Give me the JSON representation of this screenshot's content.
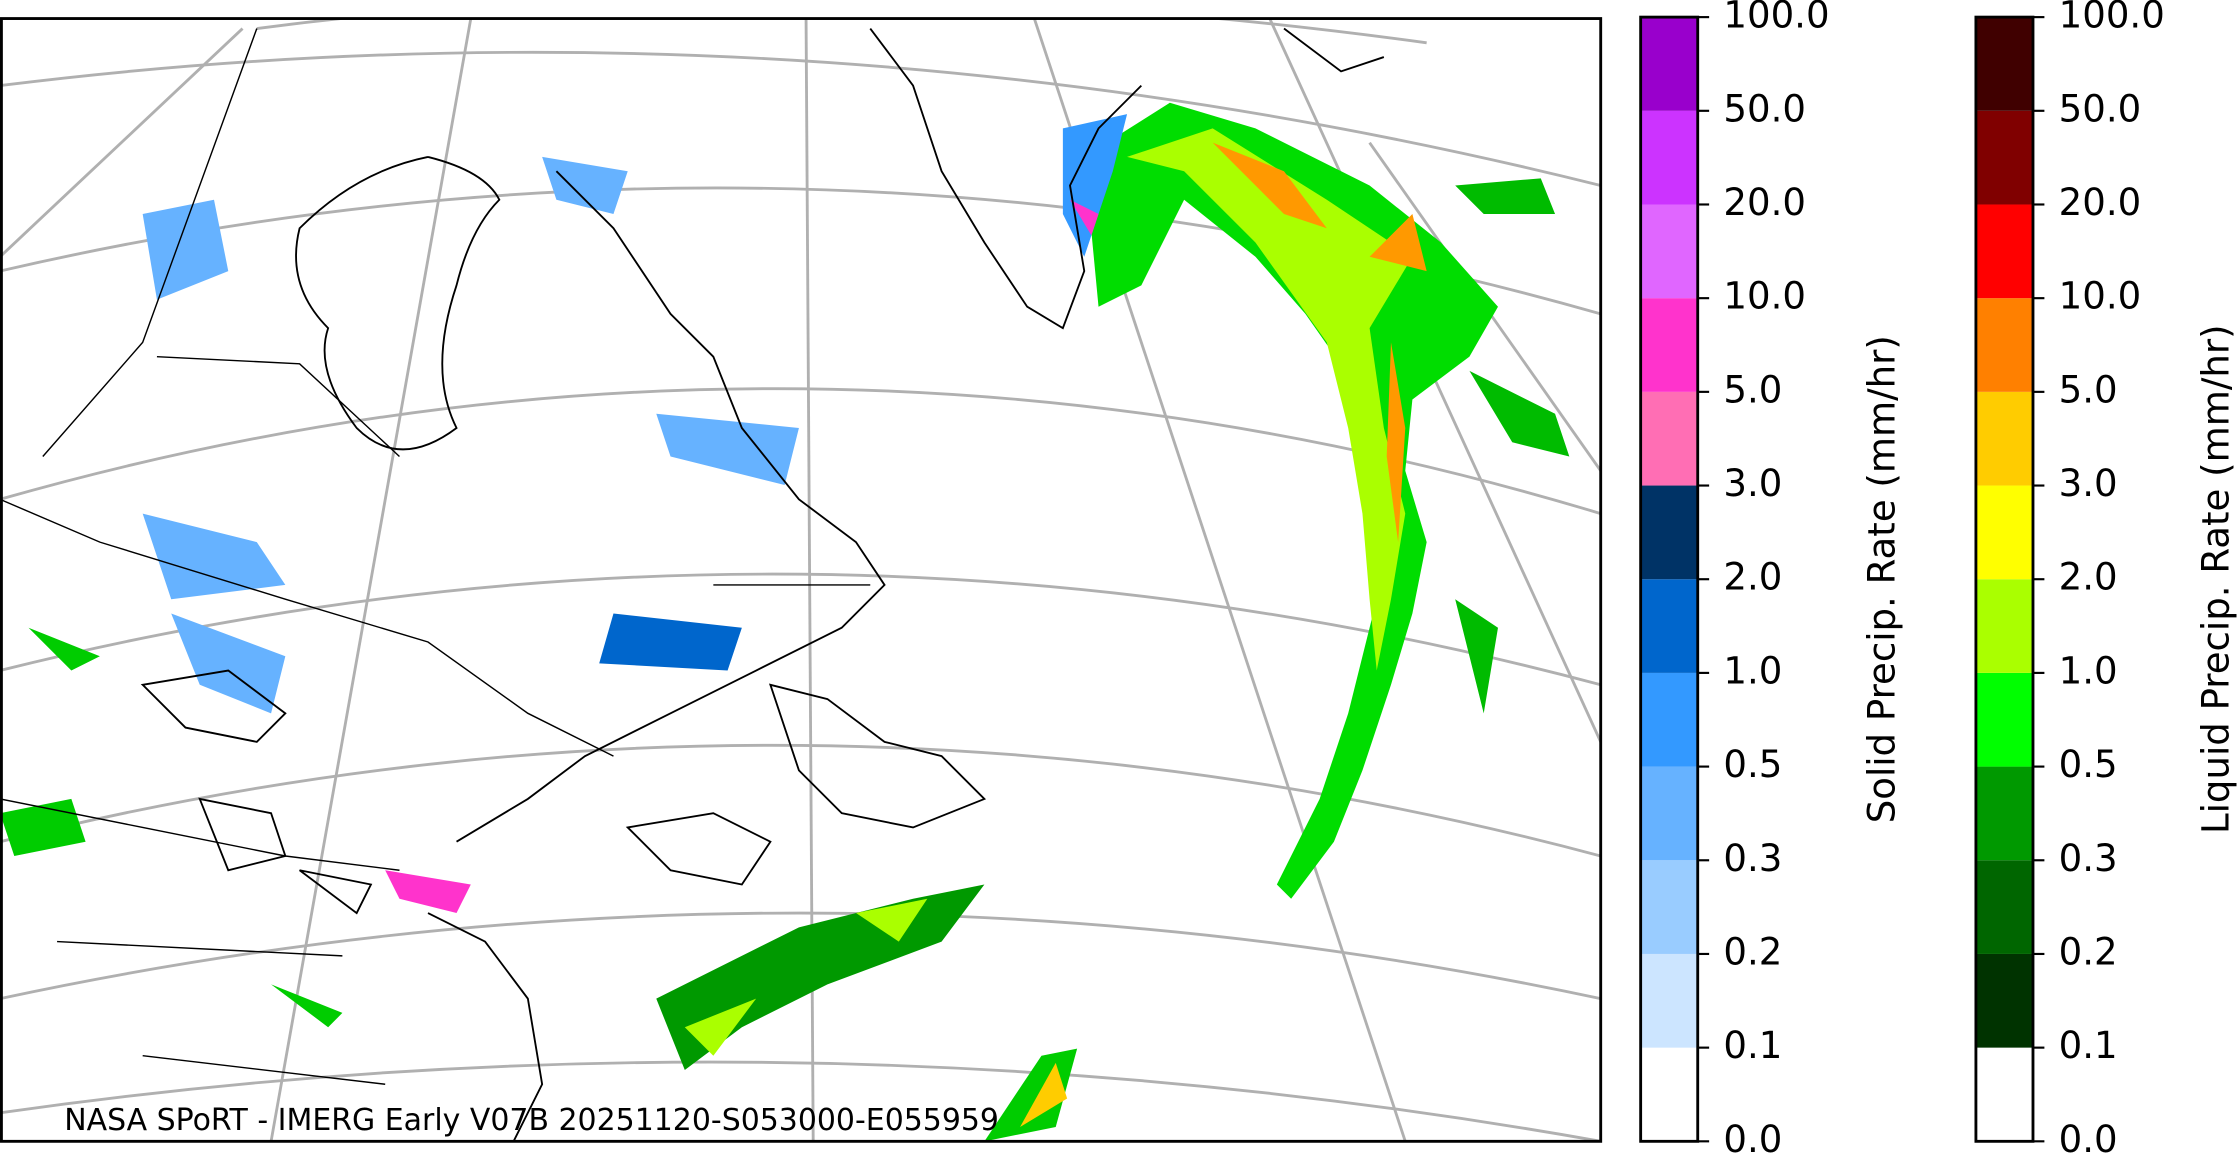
{
  "map": {
    "credit": "NASA SPoRT - IMERG Early V07B 20251120-S053000-E055959"
  },
  "colorbars": [
    {
      "label": "Solid Precip. Rate (mm/hr)",
      "ticks": [
        {
          "value": 0,
          "label": "0.0"
        },
        {
          "value": 0.1,
          "label": "0.1"
        },
        {
          "value": 0.2,
          "label": "0.2"
        },
        {
          "value": 0.3,
          "label": "0.3"
        },
        {
          "value": 0.5,
          "label": "0.5"
        },
        {
          "value": 1,
          "label": "1.0"
        },
        {
          "value": 2,
          "label": "2.0"
        },
        {
          "value": 3,
          "label": "3.0"
        },
        {
          "value": 5,
          "label": "5.0"
        },
        {
          "value": 10,
          "label": "10.0"
        },
        {
          "value": 20,
          "label": "20.0"
        },
        {
          "value": 50,
          "label": "50.0"
        },
        {
          "value": 100,
          "label": "100.0"
        }
      ],
      "colors": [
        "#ffffff",
        "#cce5ff",
        "#99ccff",
        "#66b2ff",
        "#3399ff",
        "#0066cc",
        "#003366",
        "#ff6eb4",
        "#ff33cc",
        "#e066ff",
        "#cc33ff",
        "#9900cc"
      ]
    },
    {
      "label": "Liquid Precip. Rate (mm/hr)",
      "ticks": [
        {
          "value": 0,
          "label": "0.0"
        },
        {
          "value": 0.1,
          "label": "0.1"
        },
        {
          "value": 0.2,
          "label": "0.2"
        },
        {
          "value": 0.3,
          "label": "0.3"
        },
        {
          "value": 0.5,
          "label": "0.5"
        },
        {
          "value": 1,
          "label": "1.0"
        },
        {
          "value": 2,
          "label": "2.0"
        },
        {
          "value": 3,
          "label": "3.0"
        },
        {
          "value": 5,
          "label": "5.0"
        },
        {
          "value": 10,
          "label": "10.0"
        },
        {
          "value": 20,
          "label": "20.0"
        },
        {
          "value": 50,
          "label": "50.0"
        },
        {
          "value": 100,
          "label": "100.0"
        }
      ],
      "colors": [
        "#ffffff",
        "#003300",
        "#006600",
        "#009900",
        "#00ff00",
        "#aaff00",
        "#ffff00",
        "#ffcc00",
        "#ff8000",
        "#ff0000",
        "#800000",
        "#400000"
      ]
    }
  ]
}
